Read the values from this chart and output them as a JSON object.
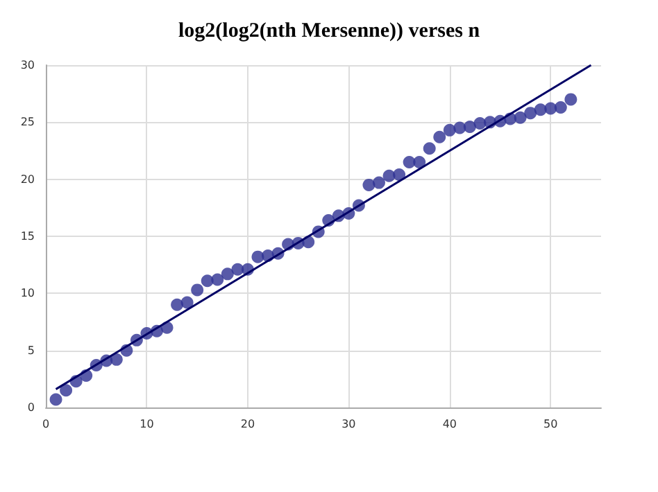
{
  "chart_data": {
    "type": "scatter",
    "title": "log2(log2(nth Mersenne)) verses n",
    "x": [
      1,
      2,
      3,
      4,
      5,
      6,
      7,
      8,
      9,
      10,
      11,
      12,
      13,
      14,
      15,
      16,
      17,
      18,
      19,
      20,
      21,
      22,
      23,
      24,
      25,
      26,
      27,
      28,
      29,
      30,
      31,
      32,
      33,
      34,
      35,
      36,
      37,
      38,
      39,
      40,
      41,
      42,
      43,
      44,
      45,
      46,
      47,
      48,
      49,
      50,
      51,
      52
    ],
    "series": [
      {
        "color": "#2e3192",
        "marker": "circle",
        "values": [
          0.7,
          1.5,
          2.3,
          2.8,
          3.7,
          4.1,
          4.2,
          5.0,
          5.9,
          6.5,
          6.7,
          7.0,
          9.0,
          9.2,
          10.3,
          11.1,
          11.2,
          11.7,
          12.1,
          12.1,
          13.2,
          13.3,
          13.5,
          14.3,
          14.4,
          14.5,
          15.4,
          16.4,
          16.8,
          17.0,
          17.7,
          19.5,
          19.7,
          20.3,
          20.4,
          21.5,
          21.5,
          22.7,
          23.7,
          24.3,
          24.5,
          24.6,
          24.9,
          25.0,
          25.1,
          25.3,
          25.4,
          25.8,
          26.1,
          26.2,
          26.3,
          27.0
        ]
      },
      {
        "type": "line",
        "color": "#000066",
        "marker": "none",
        "line_style": "solid",
        "x": [
          1,
          54
        ],
        "values": [
          1.6,
          30
        ]
      }
    ],
    "xlim": [
      0,
      55
    ],
    "xticks": [
      0,
      10,
      20,
      30,
      40,
      50
    ],
    "ylim": [
      0,
      30
    ],
    "yticks": [
      0,
      5,
      10,
      15,
      20,
      25,
      30
    ],
    "grid": true
  }
}
